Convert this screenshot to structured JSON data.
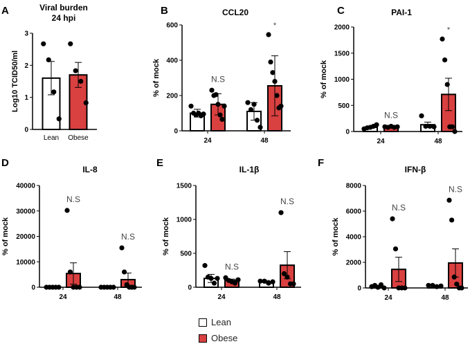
{
  "colors": {
    "lean": "#ffffff",
    "obese": "#d94040",
    "ink": "#000000"
  },
  "legend": {
    "lean": "Lean",
    "obese": "Obese"
  },
  "chart_data": [
    {
      "panel": "A",
      "type": "bar",
      "title": "Viral burden",
      "subtitle": "24 hpi",
      "ylabel": "Log10 TCID50/ml",
      "ylim": [
        0,
        3
      ],
      "yticks": [
        0,
        1,
        2,
        3
      ],
      "categories": [
        "Lean",
        "Obese"
      ],
      "bars": [
        {
          "group": "Lean",
          "mean": 1.6,
          "err": 0.52,
          "points": [
            2.67,
            2.17,
            1.17,
            0.33
          ]
        },
        {
          "group": "Obese",
          "mean": 1.7,
          "err": 0.39,
          "points": [
            2.67,
            1.83,
            1.5,
            0.83
          ]
        }
      ]
    },
    {
      "panel": "B",
      "type": "bar",
      "title": "CCL20",
      "ylabel": "% of mock",
      "ylim": [
        0,
        600
      ],
      "yticks": [
        0,
        200,
        400,
        600
      ],
      "categories": [
        "24",
        "48"
      ],
      "series": [
        {
          "name": "Lean",
          "values": [
            100,
            110
          ],
          "err": [
            22,
            50
          ],
          "points": [
            [
              140,
              100,
              90,
              100,
              85,
              95
            ],
            [
              160,
              120,
              150,
              60,
              20
            ]
          ]
        },
        {
          "name": "Obese",
          "values": [
            150,
            255
          ],
          "err": [
            60,
            170
          ],
          "points": [
            [
              230,
              200,
              205,
              150,
              90,
              65,
              140
            ],
            [
              545,
              390,
              330,
              280,
              200,
              130,
              140
            ]
          ]
        }
      ],
      "annotations": [
        "N.S",
        "*"
      ]
    },
    {
      "panel": "C",
      "type": "bar",
      "title": "PAI-1",
      "ylabel": "% of mock",
      "ylim": [
        0,
        2000
      ],
      "yticks": [
        0,
        500,
        1000,
        1500,
        2000
      ],
      "categories": [
        "24",
        "48"
      ],
      "series": [
        {
          "name": "Lean",
          "values": [
            80,
            130
          ],
          "err": [
            20,
            50
          ],
          "points": [
            [
              50,
              70,
              80,
              100,
              130
            ],
            [
              300,
              100,
              100,
              90
            ]
          ]
        },
        {
          "name": "Obese",
          "values": [
            90,
            710
          ],
          "err": [
            10,
            310
          ],
          "points": [
            [
              90,
              80,
              100,
              80,
              90
            ],
            [
              1770,
              1370,
              900,
              90,
              90,
              0
            ]
          ]
        }
      ],
      "annotations": [
        "N.S",
        "*"
      ]
    },
    {
      "panel": "D",
      "type": "bar",
      "title": "IL-8",
      "ylabel": "% of mock",
      "ylim": [
        0,
        40000
      ],
      "yticks": [
        0,
        10000,
        20000,
        30000,
        40000
      ],
      "categories": [
        "24",
        "48"
      ],
      "series": [
        {
          "name": "Lean",
          "values": [
            0,
            0
          ],
          "err": [
            0,
            0
          ],
          "points": [
            [
              0,
              0,
              0,
              0,
              0
            ],
            [
              0,
              0,
              0,
              0,
              0
            ]
          ]
        },
        {
          "name": "Obese",
          "values": [
            5400,
            3000
          ],
          "err": [
            4200,
            2600
          ],
          "points": [
            [
              30200,
              6000,
              0,
              0,
              0
            ],
            [
              15500,
              6000,
              1000,
              0,
              0,
              0
            ]
          ]
        }
      ],
      "annotations": [
        "N.S",
        "N.S"
      ]
    },
    {
      "panel": "E",
      "type": "bar",
      "title": "IL-1β",
      "ylabel": "% of mock",
      "ylim": [
        0,
        1500
      ],
      "yticks": [
        0,
        500,
        1000,
        1500
      ],
      "categories": [
        "24",
        "48"
      ],
      "series": [
        {
          "name": "Lean",
          "values": [
            130,
            80
          ],
          "err": [
            60,
            20
          ],
          "points": [
            [
              320,
              150,
              130,
              60,
              130
            ],
            [
              90,
              90,
              60,
              80
            ]
          ]
        },
        {
          "name": "Obese",
          "values": [
            100,
            325
          ],
          "err": [
            20,
            200
          ],
          "points": [
            [
              140,
              100,
              80,
              60,
              110
            ],
            [
              1100,
              200,
              150,
              50,
              50
            ]
          ]
        }
      ],
      "annotations": [
        "N.S",
        "N.S"
      ]
    },
    {
      "panel": "F",
      "type": "bar",
      "title": "IFN-β",
      "ylabel": "% of mock",
      "ylim": [
        0,
        8000
      ],
      "yticks": [
        0,
        2000,
        4000,
        6000,
        8000
      ],
      "categories": [
        "24",
        "48"
      ],
      "series": [
        {
          "name": "Lean",
          "values": [
            100,
            150
          ],
          "err": [
            50,
            40
          ],
          "points": [
            [
              100,
              200,
              50,
              250,
              0
            ],
            [
              200,
              200,
              100,
              150
            ]
          ]
        },
        {
          "name": "Obese",
          "values": [
            1450,
            1950
          ],
          "err": [
            950,
            1100
          ],
          "points": [
            [
              5400,
              3050,
              0,
              0,
              0
            ],
            [
              6850,
              5300,
              850,
              300,
              0,
              0
            ]
          ]
        }
      ],
      "annotations": [
        "N.S",
        "N.S"
      ]
    }
  ]
}
